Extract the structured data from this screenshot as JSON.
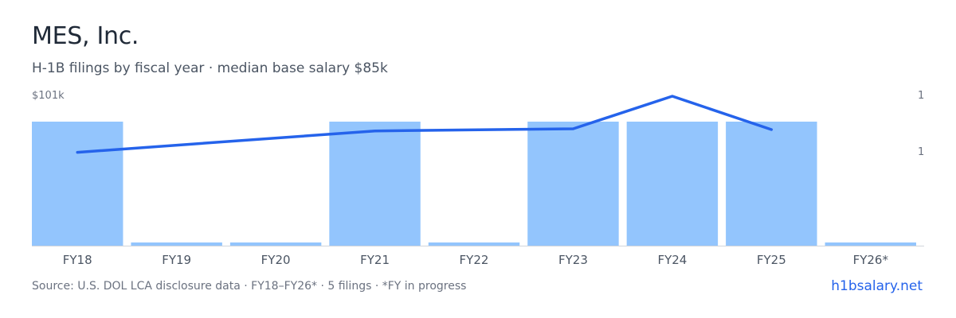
{
  "header": {
    "title": "MES, Inc.",
    "subtitle": "H-1B filings by fiscal year · median base salary $85k"
  },
  "axis": {
    "left_top_label": "$101k",
    "right_top_label": "1",
    "right_mid_label": "1"
  },
  "footer": {
    "source": "Source: U.S. DOL LCA disclosure data · FY18–FY26* · 5 filings · *FY in progress",
    "brand": "h1bsalary.net"
  },
  "colors": {
    "bar": "#93c5fd",
    "line": "#2563eb",
    "baseline": "#d1d5db",
    "tick_text": "#4b5563"
  },
  "chart_data": {
    "type": "bar",
    "categories": [
      "FY18",
      "FY19",
      "FY20",
      "FY21",
      "FY22",
      "FY23",
      "FY24",
      "FY25",
      "FY26*"
    ],
    "series": [
      {
        "values": [
          1,
          0,
          0,
          1,
          0,
          1,
          1,
          1,
          0
        ]
      },
      {
        "type": "line",
        "values": [
          80,
          null,
          null,
          88,
          null,
          88.8,
          101,
          88.5,
          null
        ]
      }
    ],
    "ylim_bar": [
      0,
      1.2
    ],
    "ylim_salary": [
      46,
      101
    ],
    "grid": false
  }
}
